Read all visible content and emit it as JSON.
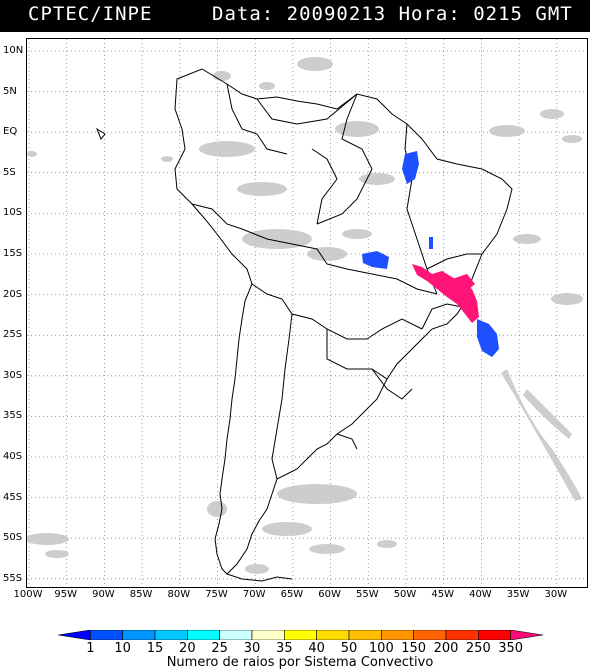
{
  "header": {
    "left": "CPTEC/INPE",
    "right": "Data: 20090213 Hora: 0215 GMT"
  },
  "lat_labels": [
    "10N",
    "5N",
    "EQ",
    "5S",
    "10S",
    "15S",
    "20S",
    "25S",
    "30S",
    "35S",
    "40S",
    "45S",
    "50S",
    "55S"
  ],
  "lon_labels": [
    "100W",
    "95W",
    "90W",
    "85W",
    "80W",
    "75W",
    "70W",
    "65W",
    "60W",
    "55W",
    "50W",
    "45W",
    "40W",
    "35W",
    "30W"
  ],
  "colorbar": {
    "labels": [
      "1",
      "10",
      "15",
      "20",
      "25",
      "30",
      "35",
      "40",
      "50",
      "100",
      "150",
      "200",
      "250",
      "350"
    ],
    "colors": [
      "#0000ff",
      "#0050ff",
      "#0096ff",
      "#00c8ff",
      "#00ffff",
      "#c8ffff",
      "#ffffc8",
      "#ffff00",
      "#ffdc00",
      "#ffbe00",
      "#ff9600",
      "#ff6400",
      "#ff3200",
      "#ff0000",
      "#ff0a78"
    ],
    "title": "Numero de raios por Sistema Convectivo"
  },
  "colors": {
    "cloud": "#c8c8c8",
    "blue_systems": "#1e50ff",
    "magenta_systems": "#ff1478"
  }
}
